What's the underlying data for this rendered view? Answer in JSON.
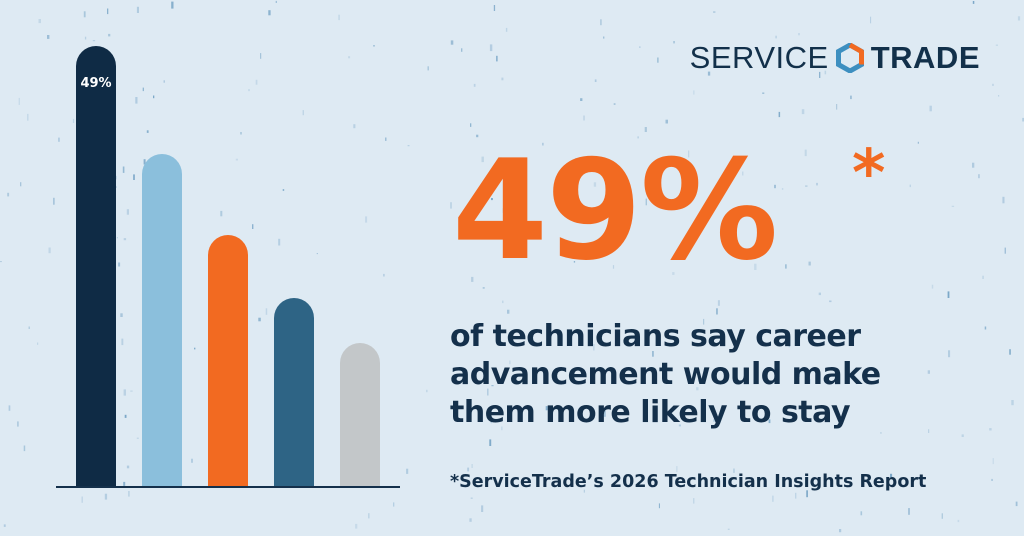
{
  "brand": {
    "name_part1": "SERVICE",
    "name_part2": "TRADE",
    "colors": {
      "navy": "#12304a",
      "orange": "#f26a21",
      "blue": "#3d8fc0",
      "background": "#deeaf3"
    }
  },
  "headline": {
    "stat": "49%",
    "asterisk": "*",
    "lines": [
      "of technicians say career",
      "advancement would make",
      "them more likely to stay"
    ]
  },
  "footnote": "*ServiceTrade’s 2026 Technician Insights Report",
  "chart_data": {
    "type": "bar",
    "title": "",
    "xlabel": "",
    "ylabel": "",
    "ylim": [
      0,
      49
    ],
    "grid": false,
    "data_label_first": "49%",
    "values": [
      49,
      37,
      28,
      21,
      16
    ],
    "colors": [
      "#0f2b45",
      "#8bbfdc",
      "#f26a21",
      "#2e6485",
      "#c3c7c9"
    ]
  }
}
